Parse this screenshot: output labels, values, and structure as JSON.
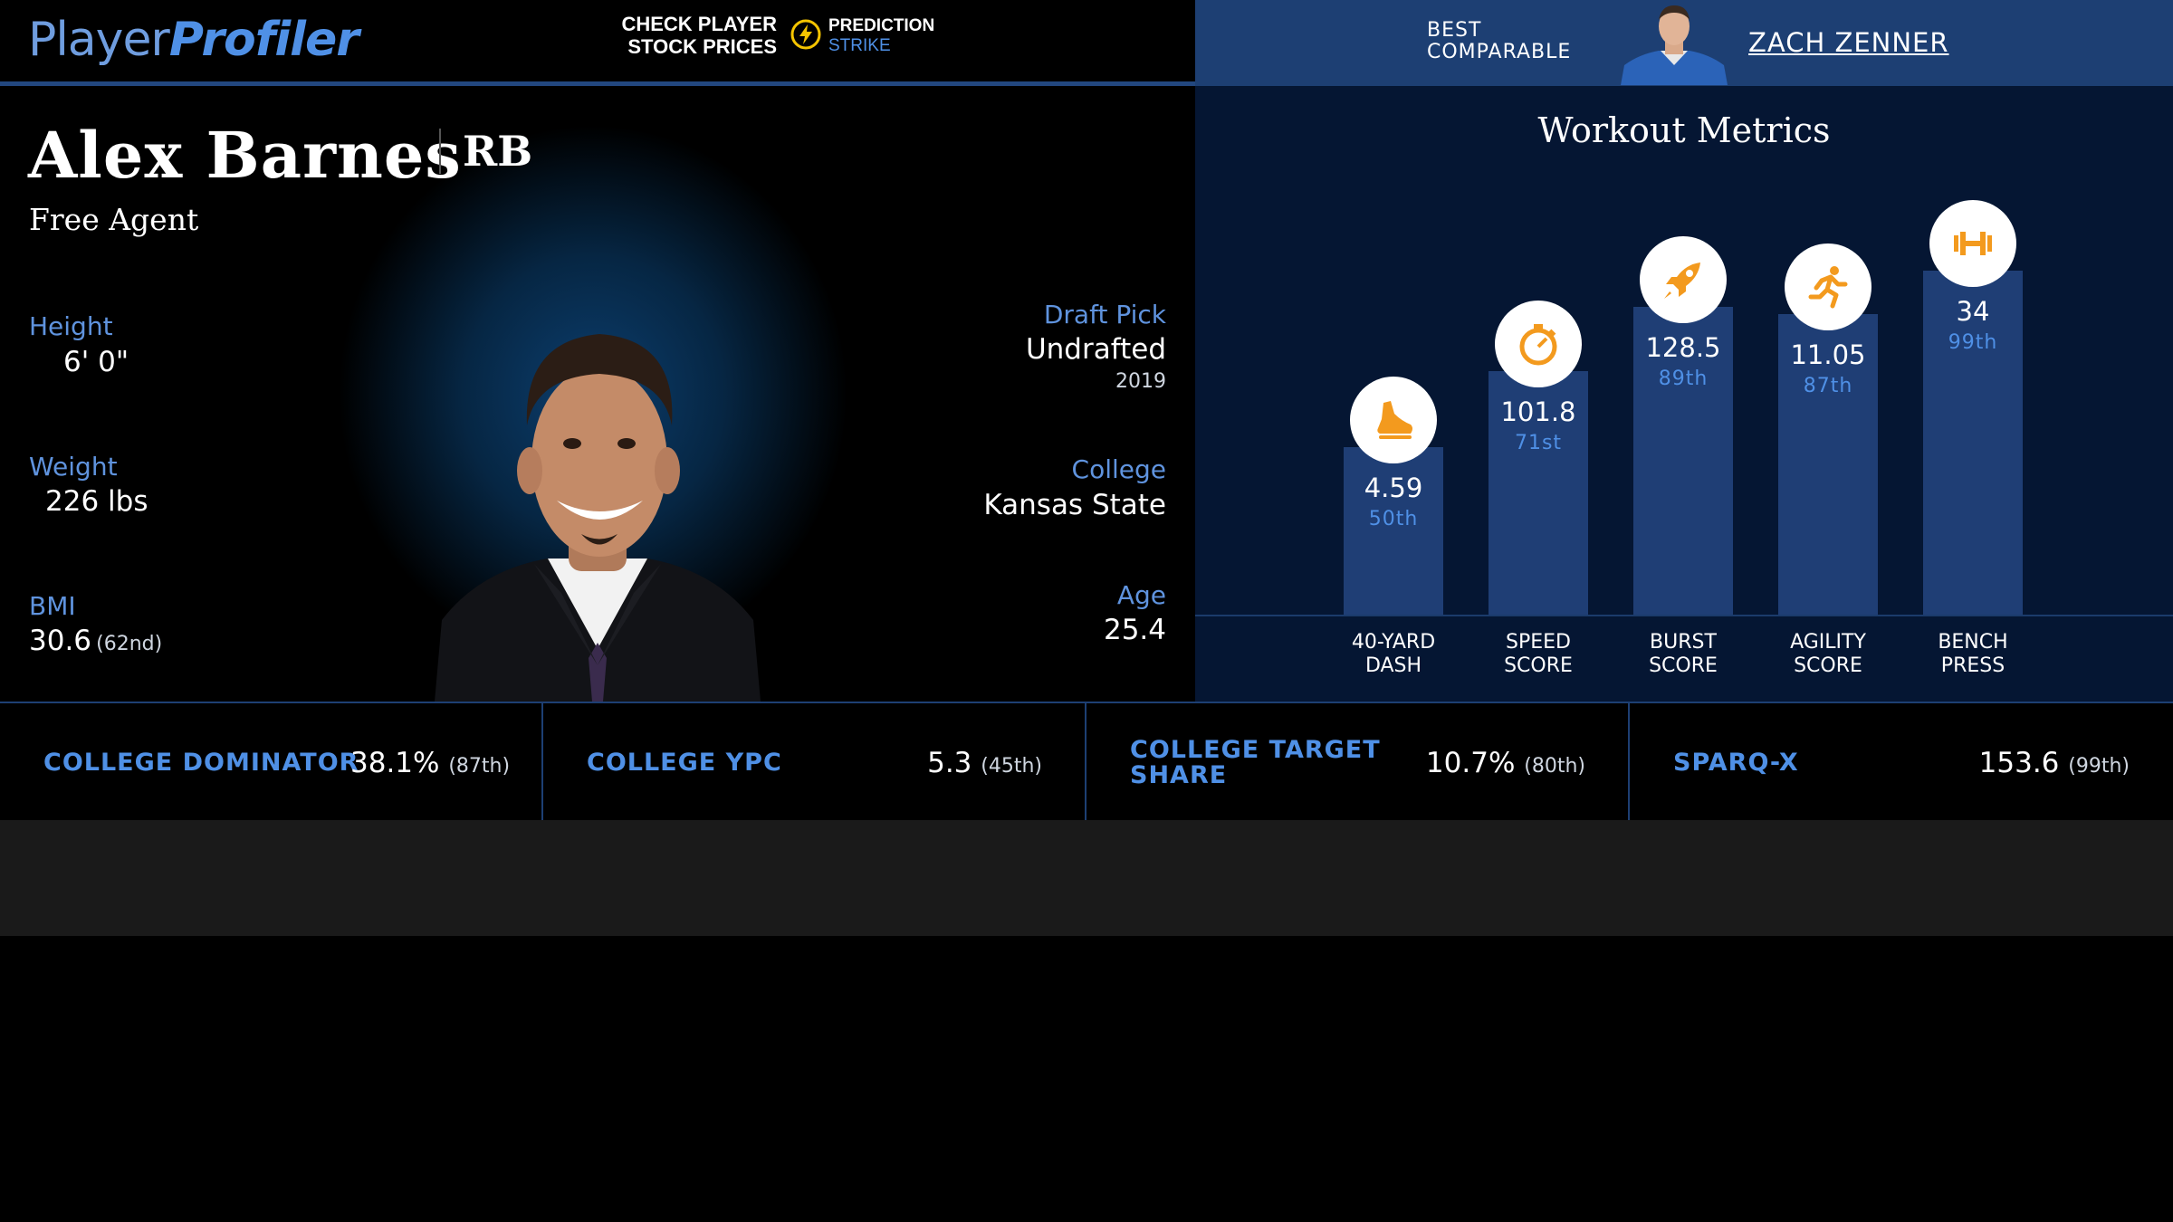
{
  "header": {
    "logo_part1": "Player",
    "logo_part2": "Profiler",
    "promo_line1": "CHECK PLAYER",
    "promo_line2": "STOCK PRICES",
    "promo_brand_line1": "PREDICTION",
    "promo_brand_line2": "STRIKE",
    "best_label_line1": "BEST",
    "best_label_line2": "COMPARABLE",
    "comparable_name": "ZACH ZENNER"
  },
  "player": {
    "name": "Alex Barnes",
    "position": "RB",
    "team": "Free Agent",
    "height_label": "Height",
    "height_value": "6' 0\"",
    "weight_label": "Weight",
    "weight_value": "226 lbs",
    "bmi_label": "BMI",
    "bmi_value": "30.6",
    "bmi_rank": "(62nd)",
    "draft_label": "Draft Pick",
    "draft_value": "Undrafted",
    "draft_year": "2019",
    "college_label": "College",
    "college_value": "Kansas State",
    "age_label": "Age",
    "age_value": "25.4"
  },
  "workout": {
    "title": "Workout Metrics",
    "metrics": [
      {
        "value": "4.59",
        "pct": "50th",
        "pct_num": 50,
        "label1": "40-YARD",
        "label2": "DASH",
        "icon": "shoe-icon"
      },
      {
        "value": "101.8",
        "pct": "71st",
        "pct_num": 71,
        "label1": "SPEED",
        "label2": "SCORE",
        "icon": "stopwatch-icon"
      },
      {
        "value": "128.5",
        "pct": "89th",
        "pct_num": 89,
        "label1": "BURST",
        "label2": "SCORE",
        "icon": "rocket-icon"
      },
      {
        "value": "11.05",
        "pct": "87th",
        "pct_num": 87,
        "label1": "AGILITY",
        "label2": "SCORE",
        "icon": "runner-icon"
      },
      {
        "value": "34",
        "pct": "99th",
        "pct_num": 99,
        "label1": "BENCH",
        "label2": "PRESS",
        "icon": "dumbbell-icon"
      }
    ]
  },
  "bottom_stats": [
    {
      "label": "COLLEGE DOMINATOR",
      "value": "38.1%",
      "rank": "(87th)"
    },
    {
      "label": "COLLEGE YPC",
      "value": "5.3",
      "rank": "(45th)"
    },
    {
      "label_line1": "COLLEGE TARGET",
      "label_line2": "SHARE",
      "value": "10.7%",
      "rank": "(80th)"
    },
    {
      "label": "SPARQ-X",
      "value": "153.6",
      "rank": "(99th)"
    }
  ],
  "colors": {
    "accent": "#4f90e6",
    "header_right_bg": "#1d3f73",
    "bar_fill": "#1f3e75",
    "icon_orange": "#f39a1e"
  }
}
